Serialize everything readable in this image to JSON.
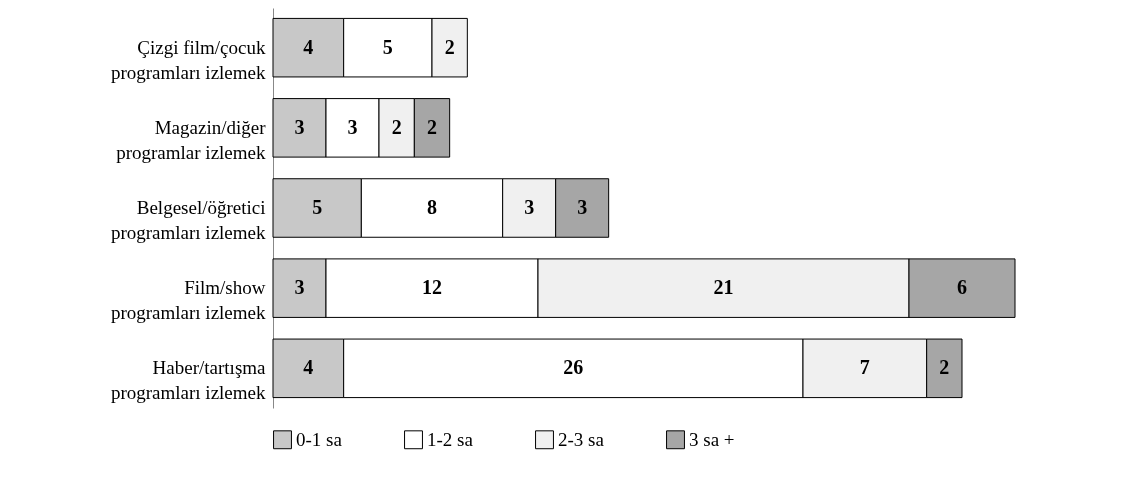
{
  "chart_data": {
    "type": "bar",
    "orientation": "horizontal",
    "stacked": true,
    "categories": [
      "Çizgi film/çocuk programları izlemek",
      "Magazin/diğer programlar izlemek",
      "Belgesel/öğretici programları izlemek",
      "Film/show programları izlemek",
      "Haber/tartışma programları izlemek"
    ],
    "series": [
      {
        "name": "0-1 sa",
        "color": "#c8c8c8",
        "values": [
          4,
          3,
          5,
          3,
          4
        ]
      },
      {
        "name": "1-2 sa",
        "color": "#ffffff",
        "values": [
          5,
          3,
          8,
          12,
          26
        ]
      },
      {
        "name": "2-3 sa",
        "color": "#f0f0f0",
        "values": [
          2,
          2,
          3,
          21,
          7
        ]
      },
      {
        "name": "3 sa +",
        "color": "#a6a6a6",
        "values": [
          null,
          2,
          3,
          6,
          2
        ]
      }
    ],
    "data_labels": true,
    "legend": "bottom"
  }
}
